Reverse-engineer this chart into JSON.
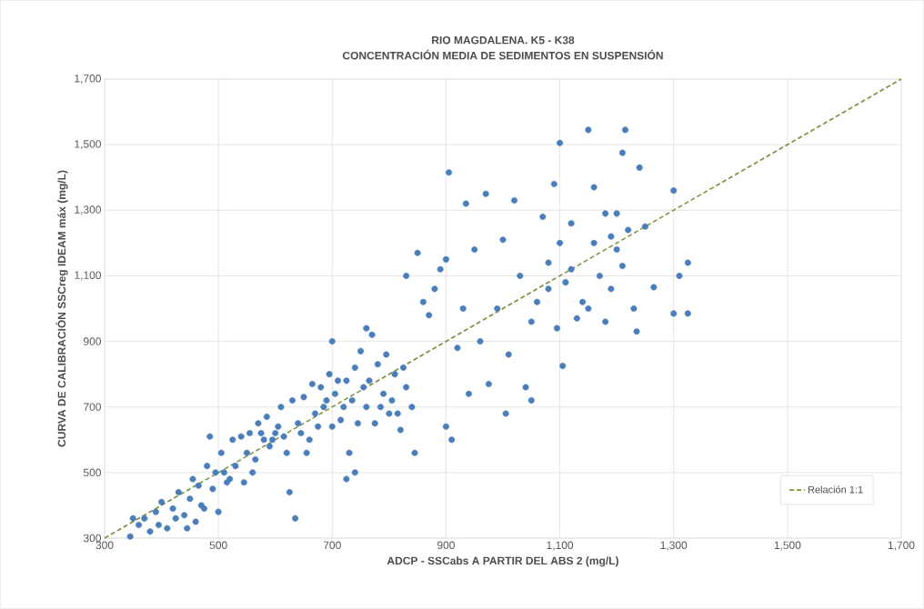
{
  "chart_data": {
    "type": "scatter",
    "title": "RIO MAGDALENA. K5 - K38",
    "subtitle": "CONCENTRACIÓN MEDIA DE SEDIMENTOS EN SUSPENSIÓN",
    "xlabel": "ADCP - SSCabs A PARTIR DEL ABS 2 (mg/L)",
    "ylabel": "CURVA DE CALIBRACIÓN SSCreg IDEAM máx (mg/L)",
    "xlim": [
      300,
      1700
    ],
    "ylim": [
      300,
      1700
    ],
    "xticks": [
      300,
      500,
      700,
      900,
      {
        "value": 1100,
        "label": "1,100"
      },
      {
        "value": 1300,
        "label": "1,300"
      },
      {
        "value": 1500,
        "label": "1,500"
      },
      {
        "value": 1700,
        "label": "1,700"
      }
    ],
    "yticks": [
      300,
      500,
      700,
      900,
      {
        "value": 1100,
        "label": "1,100"
      },
      {
        "value": 1300,
        "label": "1,300"
      },
      {
        "value": 1500,
        "label": "1,500"
      },
      {
        "value": 1700,
        "label": "1,700"
      }
    ],
    "grid": true,
    "legend": "bottom right",
    "series": [
      {
        "color": "#4a7ebb",
        "marker": "circle",
        "x": [
          345,
          360,
          370,
          380,
          390,
          400,
          410,
          420,
          430,
          440,
          450,
          455,
          460,
          470,
          480,
          485,
          490,
          500,
          505,
          510,
          520,
          530,
          540,
          550,
          560,
          570,
          580,
          590,
          600,
          610,
          620,
          625,
          635,
          640,
          650,
          660,
          670,
          680,
          690,
          700,
          700,
          710,
          720,
          730,
          740,
          750,
          755,
          760,
          770,
          780,
          790,
          800,
          810,
          820,
          830,
          840,
          845,
          830,
          850,
          860,
          870,
          880,
          890,
          900,
          905,
          900,
          910,
          920,
          930,
          935,
          940,
          950,
          960,
          970,
          975,
          990,
          1000,
          1005,
          1010,
          1020,
          1030,
          1040,
          1050,
          1060,
          1070,
          1080,
          1090,
          1095,
          1100,
          1105,
          1110,
          1120,
          1130,
          1140,
          1150,
          1160,
          1160,
          1170,
          1180,
          1190,
          1200,
          1210,
          1215,
          1220,
          1230,
          1235,
          1240,
          1250,
          1265,
          1300,
          1300,
          1310,
          1325,
          1325,
          1100,
          1050,
          1150,
          1080,
          1120,
          1180,
          1190,
          1200,
          1210,
          350,
          395,
          425,
          445,
          465,
          475,
          495,
          515,
          525,
          545,
          555,
          565,
          575,
          585,
          595,
          605,
          615,
          630,
          645,
          655,
          665,
          675,
          685,
          695,
          705,
          715,
          725,
          735,
          745,
          765,
          775,
          785,
          795,
          805,
          815,
          825,
          725,
          740,
          760
        ],
        "values": [
          305,
          340,
          360,
          320,
          380,
          410,
          330,
          390,
          440,
          370,
          420,
          480,
          350,
          400,
          520,
          610,
          450,
          380,
          560,
          500,
          480,
          520,
          610,
          560,
          500,
          650,
          600,
          580,
          620,
          700,
          560,
          440,
          360,
          650,
          730,
          600,
          680,
          760,
          720,
          640,
          900,
          780,
          700,
          560,
          820,
          870,
          760,
          700,
          920,
          830,
          740,
          680,
          800,
          630,
          760,
          700,
          560,
          1100,
          1170,
          1020,
          980,
          1060,
          1120,
          1150,
          1415,
          640,
          600,
          880,
          1000,
          1320,
          740,
          1180,
          900,
          1350,
          770,
          1000,
          1210,
          680,
          860,
          1330,
          1100,
          760,
          720,
          1020,
          1280,
          1140,
          1380,
          940,
          1505,
          825,
          1080,
          1260,
          970,
          1020,
          1545,
          1370,
          1200,
          1100,
          1290,
          1060,
          1180,
          1475,
          1545,
          1240,
          1000,
          930,
          1430,
          1250,
          1065,
          1360,
          985,
          1100,
          985,
          1140,
          1200,
          960,
          1000,
          1060,
          1120,
          960,
          1220,
          1290,
          1130,
          360,
          340,
          360,
          330,
          460,
          390,
          500,
          470,
          600,
          470,
          620,
          540,
          620,
          670,
          600,
          640,
          610,
          720,
          620,
          560,
          770,
          640,
          700,
          800,
          740,
          660,
          780,
          720,
          650,
          780,
          650,
          700,
          860,
          720,
          680,
          820,
          480,
          500,
          940
        ]
      },
      {
        "type": "line",
        "name": "Relación 1:1",
        "color": "#77933c",
        "line_style": "dashed",
        "marker": "none",
        "x": [
          300,
          1700
        ],
        "values": [
          300,
          1700
        ]
      }
    ]
  }
}
